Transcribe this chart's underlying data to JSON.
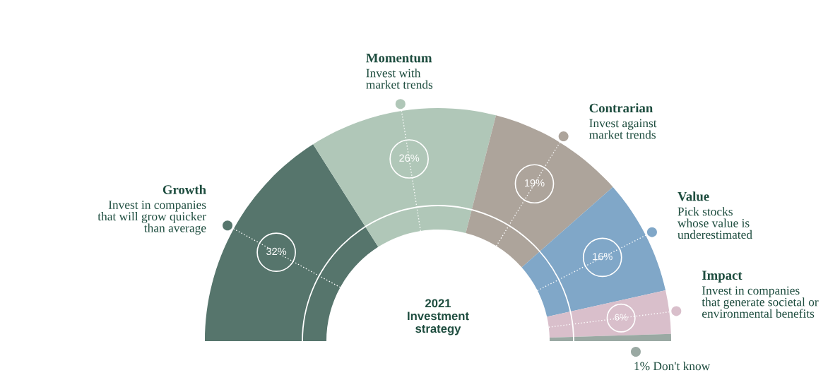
{
  "chart_data": {
    "type": "donut",
    "title": "2021 Investment strategy",
    "categories": [
      "Growth",
      "Momentum",
      "Contrarian",
      "Value",
      "Impact",
      "Don't know"
    ],
    "values": [
      32,
      26,
      19,
      16,
      6,
      1
    ],
    "value_labels": [
      "32%",
      "26%",
      "19%",
      "16%",
      "6%",
      "1%"
    ],
    "colors": [
      "#56756c",
      "#b0c7b8",
      "#ada49b",
      "#80a7c8",
      "#d9bfcb",
      "#9aa9a3"
    ],
    "annotations": [
      "Invest in companies\nthat will grow quicker\nthan average",
      "Invest with\nmarket trends",
      "Invest against\nmarket trends",
      "Pick stocks\nwhose value is\nunderestimated",
      "Invest in companies\nthat generate societal or\nenvironmental benefits"
    ],
    "data_labels": true
  }
}
